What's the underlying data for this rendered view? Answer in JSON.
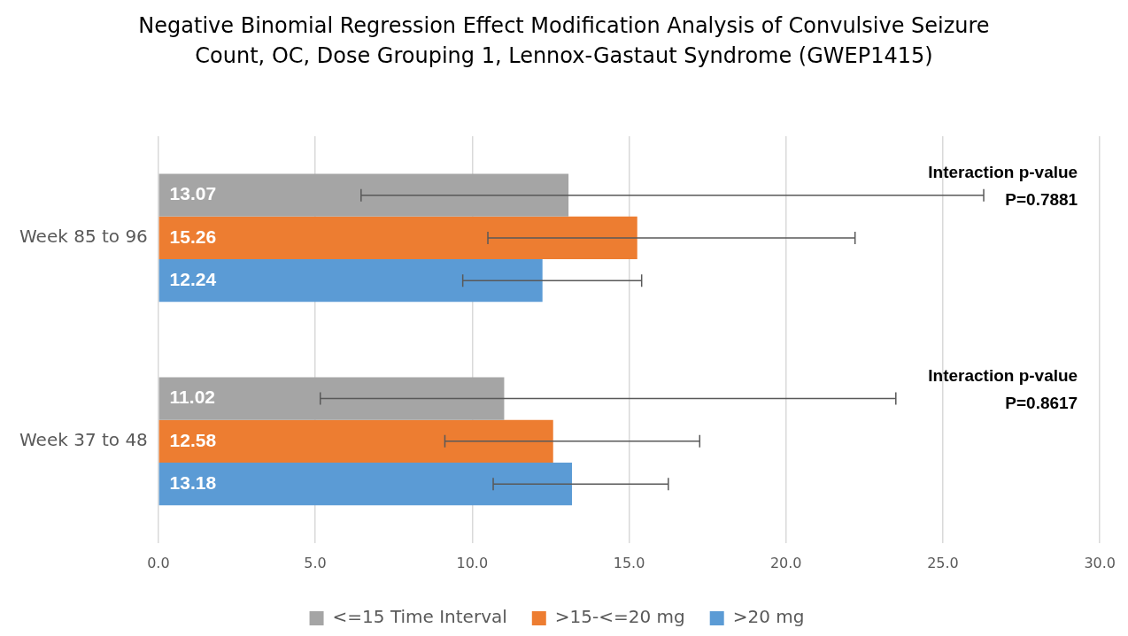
{
  "chart_data": {
    "type": "bar",
    "orientation": "horizontal",
    "title": "Negative Binomial Regression Effect Modification Analysis of Convulsive Seizure Count, OC, Dose Grouping 1, Lennox-Gastaut Syndrome (GWEP1415)",
    "categories": [
      "Week 85 to 96",
      "Week 37 to 48"
    ],
    "series": [
      {
        "name": "<=15 Time Interval",
        "color": "#a5a5a5",
        "values": [
          13.07,
          11.02
        ],
        "errors": [
          [
            6.46,
            26.3
          ],
          [
            5.16,
            23.5
          ]
        ]
      },
      {
        "name": ">15-<=20 mg",
        "color": "#ed7d31",
        "values": [
          15.26,
          12.58
        ],
        "errors": [
          [
            10.5,
            22.2
          ],
          [
            9.13,
            17.25
          ]
        ]
      },
      {
        "name": ">20 mg",
        "color": "#5b9bd5",
        "values": [
          12.24,
          13.18
        ],
        "errors": [
          [
            9.7,
            15.4
          ],
          [
            10.67,
            16.25
          ]
        ]
      }
    ],
    "xlim": [
      0,
      30
    ],
    "xticks": [
      {
        "value": 0,
        "label": "0.0"
      },
      {
        "value": 5,
        "label": "5.0"
      },
      {
        "value": 10,
        "label": "10.0"
      },
      {
        "value": 15,
        "label": "15.0"
      },
      {
        "value": 20,
        "label": "20.0"
      },
      {
        "value": 25,
        "label": "25.0"
      },
      {
        "value": 30,
        "label": "30.0"
      }
    ],
    "grid": "x",
    "legend": "bottom",
    "data_labels": true,
    "annotations": [
      "Interaction p-value\nP=0.7881",
      "Interaction p-value\nP=0.8617"
    ]
  }
}
